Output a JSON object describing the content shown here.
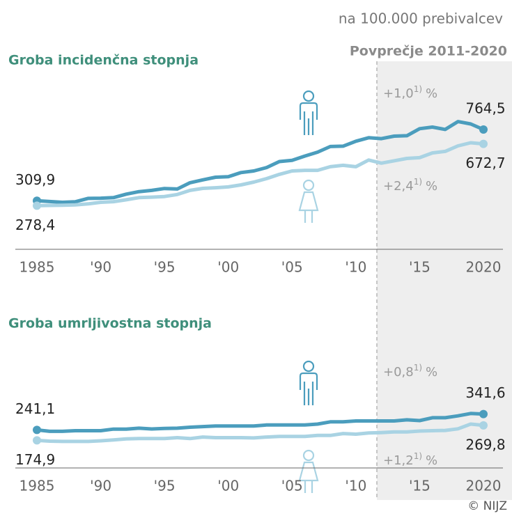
{
  "unit_note": "na 100.000 prebivalcev",
  "average_label": "Povprečje 2011-2020",
  "credit": "© NIJZ",
  "chart_data": [
    {
      "type": "line",
      "title": "Groba incidenčna stopnja",
      "x": [
        1985,
        1986,
        1987,
        1988,
        1989,
        1990,
        1991,
        1992,
        1993,
        1994,
        1995,
        1996,
        1997,
        1998,
        1999,
        2000,
        2001,
        2002,
        2003,
        2004,
        2005,
        2006,
        2007,
        2008,
        2009,
        2010,
        2011,
        2012,
        2013,
        2014,
        2015,
        2016,
        2017,
        2018,
        2019,
        2020
      ],
      "xlim": [
        1985,
        2020
      ],
      "xticks": [
        1985,
        {
          "value": 1990,
          "label": "'90"
        },
        {
          "value": 1995,
          "label": "'95"
        },
        {
          "value": 2000,
          "label": "'00"
        },
        {
          "value": 2005,
          "label": "'05"
        },
        {
          "value": 2010,
          "label": "'10"
        },
        {
          "value": 2015,
          "label": "'15"
        },
        2020
      ],
      "ylim": [
        0,
        1200
      ],
      "series": [
        {
          "color": "#4b9dbd",
          "values": [
            309.9,
            305,
            300,
            303,
            325,
            326,
            330,
            352,
            368,
            376,
            388,
            385,
            425,
            443,
            460,
            463,
            490,
            500,
            522,
            560,
            568,
            595,
            620,
            656,
            658,
            690,
            712,
            706,
            722,
            725,
            770,
            780,
            765,
            815,
            800,
            764.5
          ],
          "value_labels": [
            "309,9",
            null,
            null,
            null,
            null,
            null,
            null,
            null,
            null,
            null,
            null,
            null,
            null,
            null,
            null,
            null,
            null,
            null,
            null,
            null,
            null,
            null,
            null,
            null,
            null,
            null,
            null,
            null,
            null,
            null,
            null,
            null,
            null,
            null,
            null,
            "764,5"
          ],
          "annotation": {
            "text": "+1,0",
            "note": "1)",
            "unit": "%"
          }
        },
        {
          "color": "#a9d3e3",
          "values": [
            278.4,
            280,
            281,
            283,
            290,
            300,
            304,
            316,
            330,
            333,
            337,
            350,
            376,
            389,
            393,
            398,
            411,
            429,
            451,
            478,
            500,
            504,
            504,
            527,
            536,
            527,
            570,
            550,
            565,
            580,
            585,
            615,
            625,
            660,
            680,
            672.7
          ],
          "value_labels": [
            "278,4",
            null,
            null,
            null,
            null,
            null,
            null,
            null,
            null,
            null,
            null,
            null,
            null,
            null,
            null,
            null,
            null,
            null,
            null,
            null,
            null,
            null,
            null,
            null,
            null,
            null,
            null,
            null,
            null,
            null,
            null,
            null,
            null,
            null,
            null,
            "672,7"
          ],
          "annotation": {
            "text": "+2,4",
            "note": "1)",
            "unit": "%"
          }
        }
      ]
    },
    {
      "type": "line",
      "title": "Groba umrljivostna stopnja",
      "x": [
        1985,
        1986,
        1987,
        1988,
        1989,
        1990,
        1991,
        1992,
        1993,
        1994,
        1995,
        1996,
        1997,
        1998,
        1999,
        2000,
        2001,
        2002,
        2003,
        2004,
        2005,
        2006,
        2007,
        2008,
        2009,
        2010,
        2011,
        2012,
        2013,
        2014,
        2015,
        2016,
        2017,
        2018,
        2019,
        2020
      ],
      "xlim": [
        1985,
        2020
      ],
      "xticks": [
        1985,
        {
          "value": 1990,
          "label": "'90"
        },
        {
          "value": 1995,
          "label": "'95"
        },
        {
          "value": 2000,
          "label": "'00"
        },
        {
          "value": 2005,
          "label": "'05"
        },
        {
          "value": 2010,
          "label": "'10"
        },
        {
          "value": 2015,
          "label": "'15"
        },
        2020
      ],
      "ylim": [
        0,
        1200
      ],
      "series": [
        {
          "color": "#4b9dbd",
          "values": [
            241.1,
            232,
            232,
            236,
            236,
            236,
            246,
            246,
            252,
            247,
            250,
            252,
            258,
            262,
            266,
            266,
            266,
            266,
            272,
            272,
            272,
            272,
            278,
            292,
            292,
            298,
            298,
            298,
            298,
            305,
            300,
            318,
            318,
            330,
            345,
            341.6
          ],
          "value_labels": [
            "241,1",
            null,
            null,
            null,
            null,
            null,
            null,
            null,
            null,
            null,
            null,
            null,
            null,
            null,
            null,
            null,
            null,
            null,
            null,
            null,
            null,
            null,
            null,
            null,
            null,
            null,
            null,
            null,
            null,
            null,
            null,
            null,
            null,
            null,
            null,
            "341,6"
          ],
          "annotation": {
            "text": "+0,8",
            "note": "1)",
            "unit": "%"
          }
        },
        {
          "color": "#a9d3e3",
          "values": [
            174.9,
            170,
            168,
            168,
            168,
            172,
            178,
            184,
            186,
            186,
            186,
            192,
            186,
            196,
            192,
            192,
            192,
            190,
            196,
            200,
            200,
            200,
            206,
            206,
            218,
            214,
            222,
            224,
            228,
            228,
            234,
            236,
            238,
            248,
            278,
            269.8
          ],
          "value_labels": [
            "174,9",
            null,
            null,
            null,
            null,
            null,
            null,
            null,
            null,
            null,
            null,
            null,
            null,
            null,
            null,
            null,
            null,
            null,
            null,
            null,
            null,
            null,
            null,
            null,
            null,
            null,
            null,
            null,
            null,
            null,
            null,
            null,
            null,
            null,
            null,
            "269,8"
          ],
          "annotation": {
            "text": "+1,2",
            "note": "1)",
            "unit": "%"
          }
        }
      ]
    }
  ]
}
